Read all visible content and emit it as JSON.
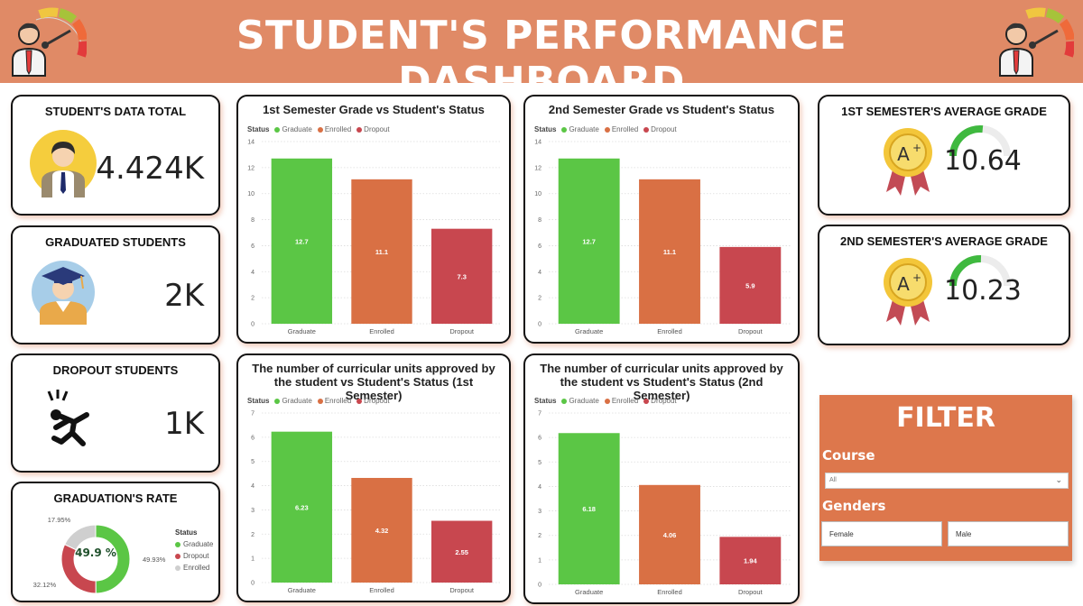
{
  "header": {
    "title": "STUDENT'S PERFORMANCE DASHBOARD"
  },
  "kpis": {
    "total": {
      "title": "STUDENT'S DATA TOTAL",
      "value": "4.424K"
    },
    "graduated": {
      "title": "GRADUATED STUDENTS",
      "value": "2K"
    },
    "dropout": {
      "title": "DROPOUT STUDENTS",
      "value": "1K"
    },
    "grade1": {
      "title": "1ST SEMESTER'S AVERAGE GRADE",
      "value": "10.64",
      "gauge_fraction": 0.53
    },
    "grade2": {
      "title": "2ND SEMESTER'S AVERAGE GRADE",
      "value": "10.23",
      "gauge_fraction": 0.51
    }
  },
  "rate": {
    "title": "GRADUATION'S RATE",
    "center": "49.9 %",
    "legend_title": "Status",
    "slices": [
      {
        "name": "Graduate",
        "value": 49.93,
        "label": "49.93%",
        "color": "#5bc645"
      },
      {
        "name": "Dropout",
        "value": 32.12,
        "label": "32.12%",
        "color": "#c8474f"
      },
      {
        "name": "Enrolled",
        "value": 17.95,
        "label": "17.95%",
        "color": "#cfcfcf"
      }
    ]
  },
  "legend": {
    "title": "Status",
    "items": [
      {
        "name": "Graduate",
        "color": "#5bc645"
      },
      {
        "name": "Enrolled",
        "color": "#d97044"
      },
      {
        "name": "Dropout",
        "color": "#c8474f"
      }
    ]
  },
  "chart_data": [
    {
      "type": "bar",
      "title": "1st Semester Grade vs Student's Status",
      "categories": [
        "Graduate",
        "Enrolled",
        "Dropout"
      ],
      "values": [
        12.7,
        11.1,
        7.3
      ],
      "value_labels": [
        "12.7",
        "11.1",
        "7.3"
      ],
      "ylim": [
        0,
        14
      ],
      "yticks": [
        "0",
        "2",
        "4",
        "6",
        "8",
        "10",
        "12",
        "14"
      ],
      "colors": [
        "#5bc645",
        "#d97044",
        "#c8474f"
      ],
      "grid": true
    },
    {
      "type": "bar",
      "title": "2nd Semester Grade vs Student's Status",
      "categories": [
        "Graduate",
        "Enrolled",
        "Dropout"
      ],
      "values": [
        12.7,
        11.1,
        5.9
      ],
      "value_labels": [
        "12.7",
        "11.1",
        "5.9"
      ],
      "ylim": [
        0,
        14
      ],
      "yticks": [
        "0",
        "2",
        "4",
        "6",
        "8",
        "10",
        "12",
        "14"
      ],
      "colors": [
        "#5bc645",
        "#d97044",
        "#c8474f"
      ],
      "grid": true
    },
    {
      "type": "bar",
      "title": "The number of curricular units approved by the student vs Student's Status (1st Semester)",
      "categories": [
        "Graduate",
        "Enrolled",
        "Dropout"
      ],
      "values": [
        6.23,
        4.32,
        2.55
      ],
      "value_labels": [
        "6.23",
        "4.32",
        "2.55"
      ],
      "ylim": [
        0,
        7
      ],
      "yticks": [
        "0",
        "1",
        "2",
        "3",
        "4",
        "5",
        "6",
        "7"
      ],
      "colors": [
        "#5bc645",
        "#d97044",
        "#c8474f"
      ],
      "grid": true
    },
    {
      "type": "bar",
      "title": "The number of curricular units approved by the student vs Student's Status (2nd Semester)",
      "categories": [
        "Graduate",
        "Enrolled",
        "Dropout"
      ],
      "values": [
        6.18,
        4.06,
        1.94
      ],
      "value_labels": [
        "6.18",
        "4.06",
        "1.94"
      ],
      "ylim": [
        0,
        7
      ],
      "yticks": [
        "0",
        "1",
        "2",
        "3",
        "4",
        "5",
        "6",
        "7"
      ],
      "colors": [
        "#5bc645",
        "#d97044",
        "#c8474f"
      ],
      "grid": true
    }
  ],
  "filter": {
    "title": "FILTER",
    "course_label": "Course",
    "course_value": "All",
    "genders_label": "Genders",
    "female": "Female",
    "male": "Male"
  }
}
